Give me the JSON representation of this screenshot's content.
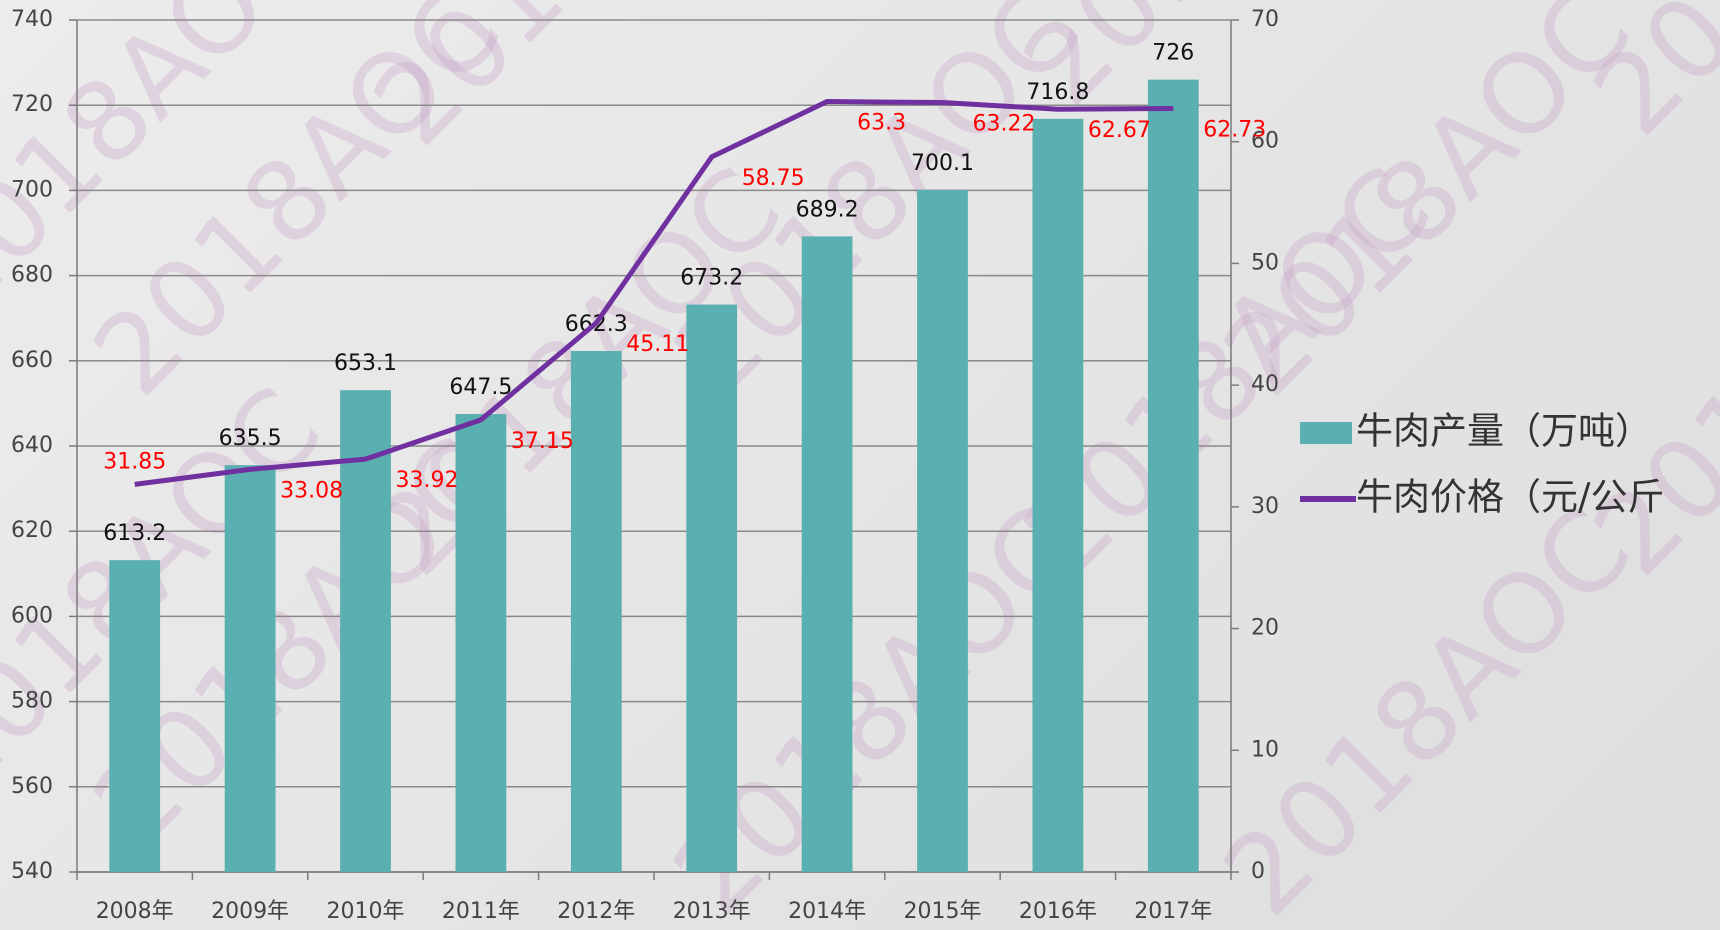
{
  "chart_data": {
    "type": "bar",
    "watermark": "2018AOC",
    "categories": [
      "2008年",
      "2009年",
      "2010年",
      "2011年",
      "2012年",
      "2013年",
      "2014年",
      "2015年",
      "2016年",
      "2017年"
    ],
    "series": [
      {
        "name": "牛肉产量（万吨）",
        "type": "bar",
        "color": "#5aafb0",
        "label_color": "#111111",
        "values": [
          613.2,
          635.5,
          653.1,
          647.5,
          662.3,
          673.2,
          689.2,
          700.1,
          716.8,
          726
        ]
      },
      {
        "name": "牛肉价格（元/公斤",
        "type": "line",
        "axis": "y2",
        "color": "#7030a0",
        "label_color": "#ff0000",
        "values": [
          31.85,
          33.08,
          33.92,
          37.15,
          45.11,
          58.75,
          63.3,
          63.22,
          62.67,
          62.73
        ]
      }
    ],
    "ylim": [
      540,
      740
    ],
    "yticks": [
      540,
      560,
      580,
      600,
      620,
      640,
      660,
      680,
      700,
      720,
      740
    ],
    "y2lim": [
      0,
      70
    ],
    "y2ticks": [
      0,
      10,
      20,
      30,
      40,
      50,
      60,
      70
    ],
    "grid": true,
    "legend": "right"
  }
}
